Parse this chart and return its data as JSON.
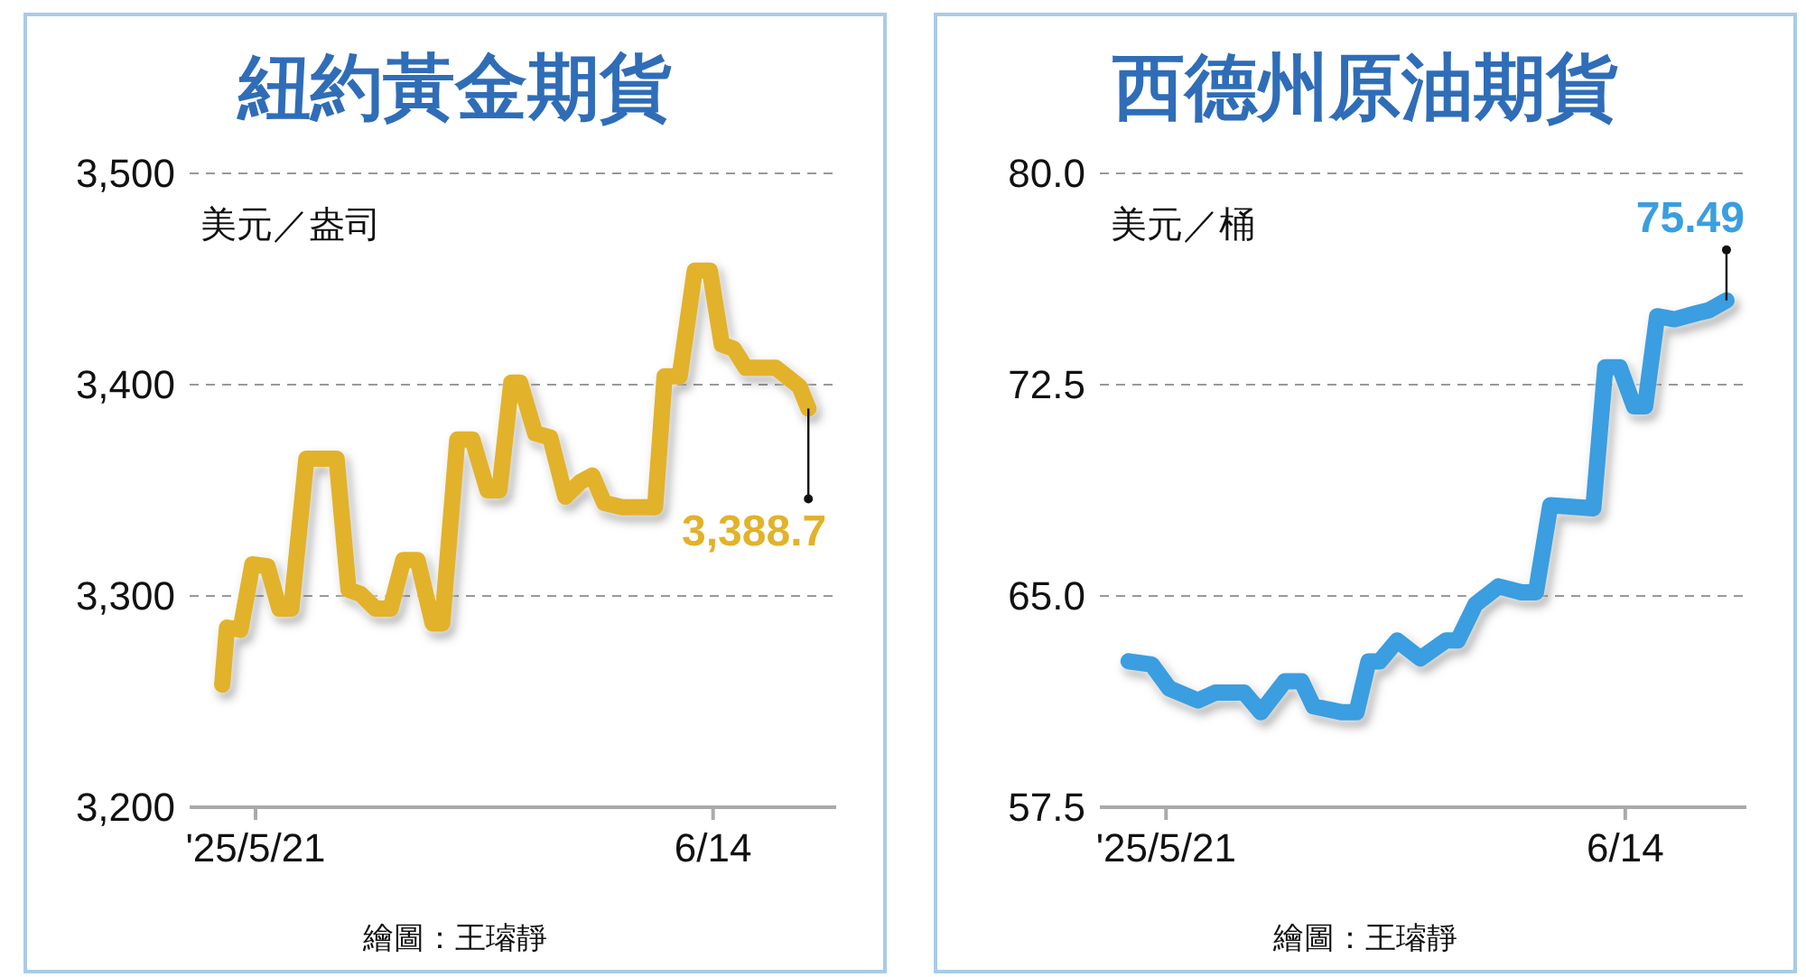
{
  "chart_data": [
    {
      "type": "line",
      "title": "紐約黃金期貨",
      "ylabel": "美元／盎司",
      "x": [
        "2025-05-19T06:00",
        "2025-05-19T12:00",
        "2025-05-20T05:00",
        "2025-05-20T20:00",
        "2025-05-21T15:00",
        "2025-05-22T06:00",
        "2025-05-22T21:00",
        "2025-05-23T16:00",
        "2025-05-25T06:00",
        "2025-05-25T21:00",
        "2025-05-26T12:00",
        "2025-05-27T07:00",
        "2025-05-28T02:00",
        "2025-05-28T18:00",
        "2025-05-29T12:00",
        "2025-05-30T07:00",
        "2025-05-30T19:00",
        "2025-05-31T14:00",
        "2025-06-01T09:00",
        "2025-06-02T04:00",
        "2025-06-02T19:00",
        "2025-06-03T10:00",
        "2025-06-03T21:00",
        "2025-06-04T16:00",
        "2025-06-05T11:00",
        "2025-06-06T06:00",
        "2025-06-07T01:00",
        "2025-06-07T16:00",
        "2025-06-08T07:00",
        "2025-06-09T06:00",
        "2025-06-10T23:00",
        "2025-06-11T11:00",
        "2025-06-12T06:00",
        "2025-06-13T01:00",
        "2025-06-13T20:00",
        "2025-06-14T11:00",
        "2025-06-15T02:00",
        "2025-06-15T17:00",
        "2025-06-17T07:00",
        "2025-06-18T13:00",
        "2025-06-19T00:00"
      ],
      "series": [
        {
          "color": "#e2b22a",
          "values": [
            3258,
            3285,
            3284,
            3315,
            3314,
            3294,
            3294,
            3365,
            3365,
            3303,
            3301,
            3294,
            3294,
            3317,
            3317,
            3287,
            3287,
            3374,
            3374,
            3350,
            3350,
            3401,
            3401,
            3377,
            3375,
            3347,
            3354,
            3357,
            3344,
            3342,
            3342,
            3404,
            3404,
            3454,
            3454,
            3419,
            3417,
            3408,
            3408,
            3399,
            3388.7
          ]
        }
      ],
      "xlim": [
        "2025-05-17T13:00",
        "2025-06-20T11:00"
      ],
      "xticks": [
        {
          "value": "2025-05-21",
          "label": "'25/5/21"
        },
        {
          "value": "2025-06-14",
          "label": "6/14"
        }
      ],
      "ylim": [
        3200,
        3500
      ],
      "yticks": [
        {
          "value": 3200,
          "label": "3,200"
        },
        {
          "value": 3300,
          "label": "3,300"
        },
        {
          "value": 3400,
          "label": "3,400"
        },
        {
          "value": 3500,
          "label": "3,500"
        }
      ],
      "grid": "y",
      "line_style": "solid",
      "annotations": [
        {
          "text": "3,388.7",
          "x": "2025-06-19T00:00",
          "y": 3388.7
        },
        "繪圖：王璿靜"
      ]
    },
    {
      "type": "line",
      "title": "西德州原油期貨",
      "ylabel": "美元／桶",
      "x": [
        "2025-05-19T01:00",
        "2025-05-20T06:00",
        "2025-05-21T04:00",
        "2025-05-22T16:00",
        "2025-05-23T14:00",
        "2025-05-25T02:00",
        "2025-05-25T23:00",
        "2025-05-27T05:00",
        "2025-05-28T02:00",
        "2025-05-28T17:00",
        "2025-05-30T05:00",
        "2025-05-30T23:00",
        "2025-05-31T14:00",
        "2025-06-01T04:00",
        "2025-06-02T02:00",
        "2025-06-03T07:00",
        "2025-06-04T15:00",
        "2025-06-05T06:00",
        "2025-06-06T04:00",
        "2025-06-07T09:00",
        "2025-06-08T14:00",
        "2025-06-09T08:00",
        "2025-06-10T02:00",
        "2025-06-12T08:00",
        "2025-06-12T23:00",
        "2025-06-13T17:00",
        "2025-06-14T11:00",
        "2025-06-15T01:00",
        "2025-06-15T16:00",
        "2025-06-16T14:00",
        "2025-06-17T18:00",
        "2025-06-18T09:00",
        "2025-06-19T07:00"
      ],
      "series": [
        {
          "color": "#3a9ee0",
          "values": [
            62.68,
            62.57,
            61.72,
            61.29,
            61.57,
            61.57,
            60.87,
            61.97,
            61.97,
            61.08,
            60.87,
            60.87,
            62.68,
            62.68,
            63.42,
            62.78,
            63.42,
            63.42,
            64.7,
            65.34,
            65.13,
            65.13,
            68.22,
            68.11,
            73.12,
            73.12,
            71.73,
            71.73,
            74.93,
            74.82,
            75.04,
            75.14,
            75.49
          ]
        }
      ],
      "xlim": [
        "2025-05-17T13:00",
        "2025-06-20T08:00"
      ],
      "xticks": [
        {
          "value": "2025-05-21",
          "label": "'25/5/21"
        },
        {
          "value": "2025-06-14",
          "label": "6/14"
        }
      ],
      "ylim": [
        57.5,
        80
      ],
      "yticks": [
        {
          "value": 57.5,
          "label": "57.5"
        },
        {
          "value": 65,
          "label": "65.0"
        },
        {
          "value": 72.5,
          "label": "72.5"
        },
        {
          "value": 80,
          "label": "80.0"
        }
      ],
      "grid": "y",
      "line_style": "solid",
      "annotations": [
        {
          "text": "75.49",
          "x": "2025-06-19T07:00",
          "y": 75.49
        },
        "繪圖：王璿靜"
      ]
    }
  ]
}
